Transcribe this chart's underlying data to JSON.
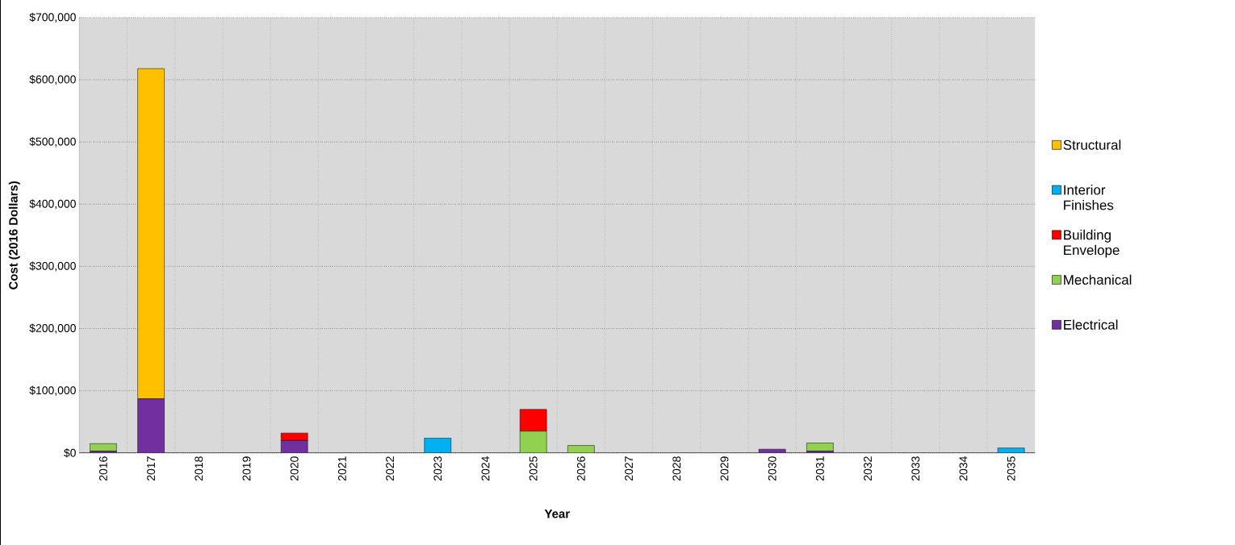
{
  "chart_data": {
    "type": "bar",
    "stacked": true,
    "xlabel": "Year",
    "ylabel": "Cost (2016 Dollars)",
    "categories": [
      "2016",
      "2017",
      "2018",
      "2019",
      "2020",
      "2021",
      "2022",
      "2023",
      "2024",
      "2025",
      "2026",
      "2027",
      "2028",
      "2029",
      "2030",
      "2031",
      "2032",
      "2033",
      "2034",
      "2035"
    ],
    "series": [
      {
        "name": "Electrical",
        "color": "#7030a0",
        "values": [
          3000,
          87000,
          0,
          null,
          20000,
          null,
          0,
          0,
          0,
          0,
          0,
          0,
          null,
          null,
          6000,
          3000,
          0,
          0,
          0,
          0
        ]
      },
      {
        "name": "Mechanical",
        "color": "#92d050",
        "values": [
          12000,
          0,
          0,
          0,
          0,
          0,
          0,
          0,
          0,
          35000,
          12000,
          0,
          0,
          0,
          0,
          13000,
          0,
          0,
          0,
          0
        ]
      },
      {
        "name": "Building Envelope",
        "color": "#ff0000",
        "values": [
          0,
          0,
          0,
          0,
          12000,
          0,
          0,
          0,
          0,
          35000,
          0,
          0,
          0,
          0,
          0,
          0,
          0,
          0,
          0,
          0
        ]
      },
      {
        "name": "Interior Finishes",
        "color": "#00b0f0",
        "values": [
          0,
          0,
          0,
          0,
          0,
          0,
          0,
          24000,
          0,
          0,
          0,
          0,
          0,
          0,
          0,
          0,
          0,
          0,
          0,
          8000
        ]
      },
      {
        "name": "Structural",
        "color": "#ffc000",
        "values": [
          0,
          531000,
          0,
          0,
          0,
          0,
          0,
          0,
          0,
          0,
          0,
          0,
          0,
          0,
          0,
          0,
          0,
          0,
          0,
          0
        ]
      }
    ],
    "ylim": [
      0,
      700000
    ],
    "yticks": [
      {
        "value": 0,
        "label": "$0"
      },
      {
        "value": 100000,
        "label": "$100,000"
      },
      {
        "value": 200000,
        "label": "$200,000"
      },
      {
        "value": 300000,
        "label": "$300,000"
      },
      {
        "value": 400000,
        "label": "$400,000"
      },
      {
        "value": 500000,
        "label": "$500,000"
      },
      {
        "value": 600000,
        "label": "$600,000"
      },
      {
        "value": 700000,
        "label": "$700,000"
      }
    ],
    "grid": true,
    "legend": "right"
  }
}
